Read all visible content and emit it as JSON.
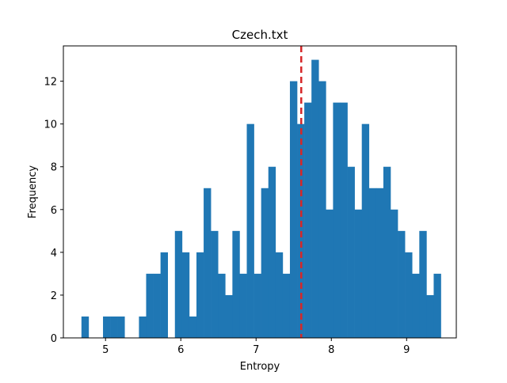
{
  "chart_data": {
    "type": "bar",
    "title": "Czech.txt",
    "xlabel": "Entropy",
    "ylabel": "Frequency",
    "bin_start": 4.68,
    "bin_width": 0.0955,
    "values": [
      1,
      0,
      0,
      1,
      1,
      1,
      0,
      0,
      1,
      3,
      3,
      4,
      0,
      5,
      4,
      1,
      4,
      7,
      5,
      3,
      2,
      5,
      3,
      10,
      3,
      7,
      8,
      4,
      3,
      12,
      10,
      11,
      13,
      12,
      6,
      11,
      11,
      8,
      6,
      10,
      7,
      7,
      8,
      6,
      5,
      4,
      3,
      5,
      2,
      3
    ],
    "reference_line": {
      "x": 7.6,
      "style": "dashed",
      "color": "#d62728"
    },
    "xlim": [
      4.44,
      9.66
    ],
    "ylim": [
      0,
      13.65
    ],
    "xticks": [
      5,
      6,
      7,
      8,
      9
    ],
    "yticks": [
      0,
      2,
      4,
      6,
      8,
      10,
      12
    ],
    "bar_color": "#1f77b4",
    "grid": false,
    "legend": "none"
  }
}
